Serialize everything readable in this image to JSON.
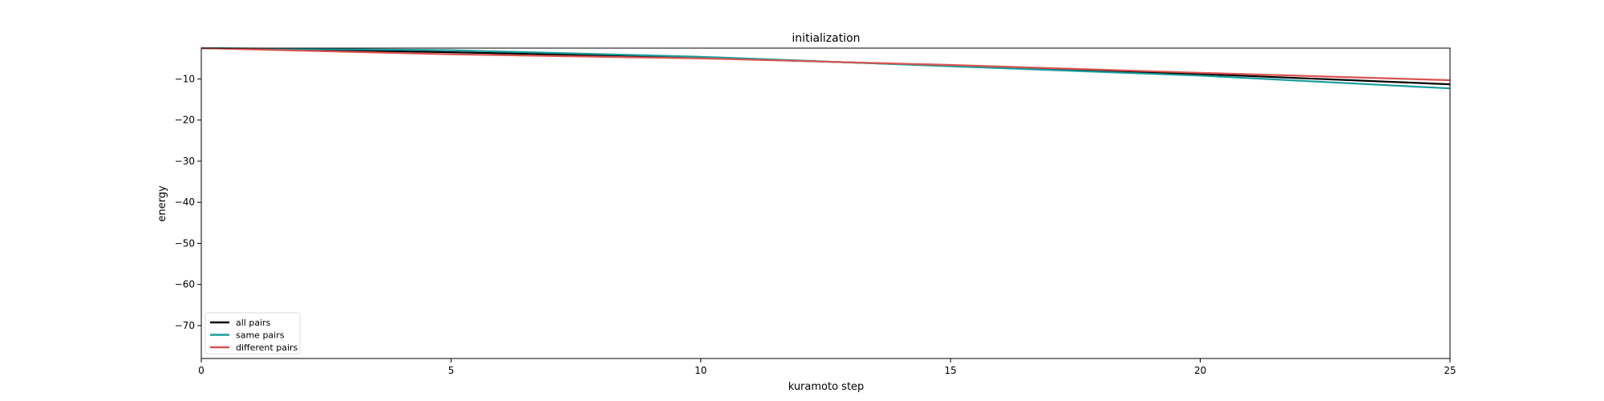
{
  "chart_data": {
    "type": "line",
    "title": "initialization",
    "xlabel": "kuramoto step",
    "ylabel": "energy",
    "xlim": [
      0,
      25
    ],
    "ylim": [
      -78,
      -2.5
    ],
    "xticks": [
      0,
      5,
      10,
      15,
      20,
      25
    ],
    "yticks": [
      -10,
      -20,
      -30,
      -40,
      -50,
      -60,
      -70
    ],
    "ytick_labels": [
      "−10",
      "−20",
      "−30",
      "−40",
      "−50",
      "−60",
      "−70"
    ],
    "grid": false,
    "legend_position": "lower-left",
    "x": [
      0,
      5,
      10,
      15,
      20,
      25
    ],
    "series": [
      {
        "name": "all pairs",
        "color": "#000000",
        "values": [
          -2.5,
          -3.5,
          -4.8,
          -6.8,
          -8.8,
          -11.3
        ]
      },
      {
        "name": "same pairs",
        "color": "#1a9c9c",
        "values": [
          -2.5,
          -3.0,
          -4.6,
          -6.9,
          -9.2,
          -12.3
        ]
      },
      {
        "name": "different pairs",
        "color": "#d9534f",
        "values": [
          -2.5,
          -4.0,
          -5.0,
          -6.6,
          -8.5,
          -10.3
        ]
      }
    ]
  }
}
